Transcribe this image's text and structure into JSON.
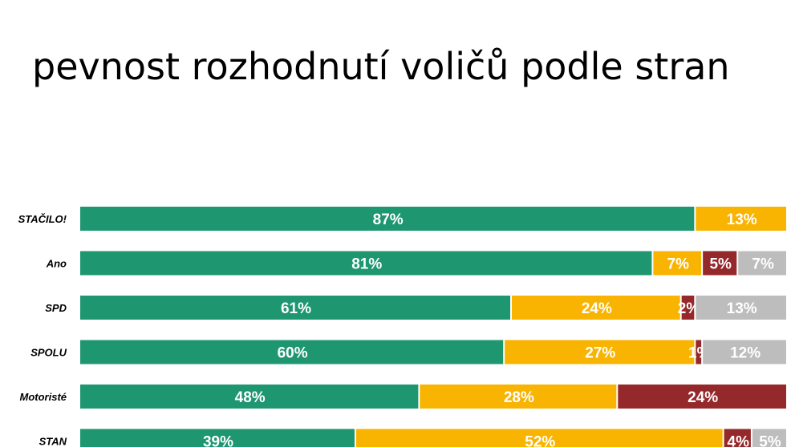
{
  "title": "pevnost rozhodnutí voličů podle stran",
  "colors": {
    "green": "#1e9670",
    "yellow": "#f8b400",
    "darkred": "#95282a",
    "gray": "#bdbdbd"
  },
  "chart_data": {
    "type": "bar",
    "orientation": "horizontal",
    "stacked": true,
    "xlim": [
      0,
      100
    ],
    "categories": [
      "STAČILO!",
      "Ano",
      "SPD",
      "SPOLU",
      "Motoristé",
      "STAN"
    ],
    "series": [
      {
        "color": "#1e9670",
        "values": [
          87,
          81,
          61,
          60,
          48,
          39
        ],
        "labels": [
          "87%",
          "81%",
          "61%",
          "60%",
          "48%",
          "39%"
        ]
      },
      {
        "color": "#f8b400",
        "values": [
          13,
          7,
          24,
          27,
          28,
          52
        ],
        "labels": [
          "13%",
          "7%",
          "24%",
          "27%",
          "28%",
          "52%"
        ]
      },
      {
        "color": "#95282a",
        "values": [
          0,
          5,
          2,
          1,
          24,
          4
        ],
        "labels": [
          "",
          "5%",
          "2%",
          "1%",
          "24%",
          "4%"
        ]
      },
      {
        "color": "#bdbdbd",
        "values": [
          0,
          7,
          13,
          12,
          0,
          5
        ],
        "labels": [
          "",
          "7%",
          "13%",
          "12%",
          "",
          "5%"
        ]
      }
    ]
  }
}
